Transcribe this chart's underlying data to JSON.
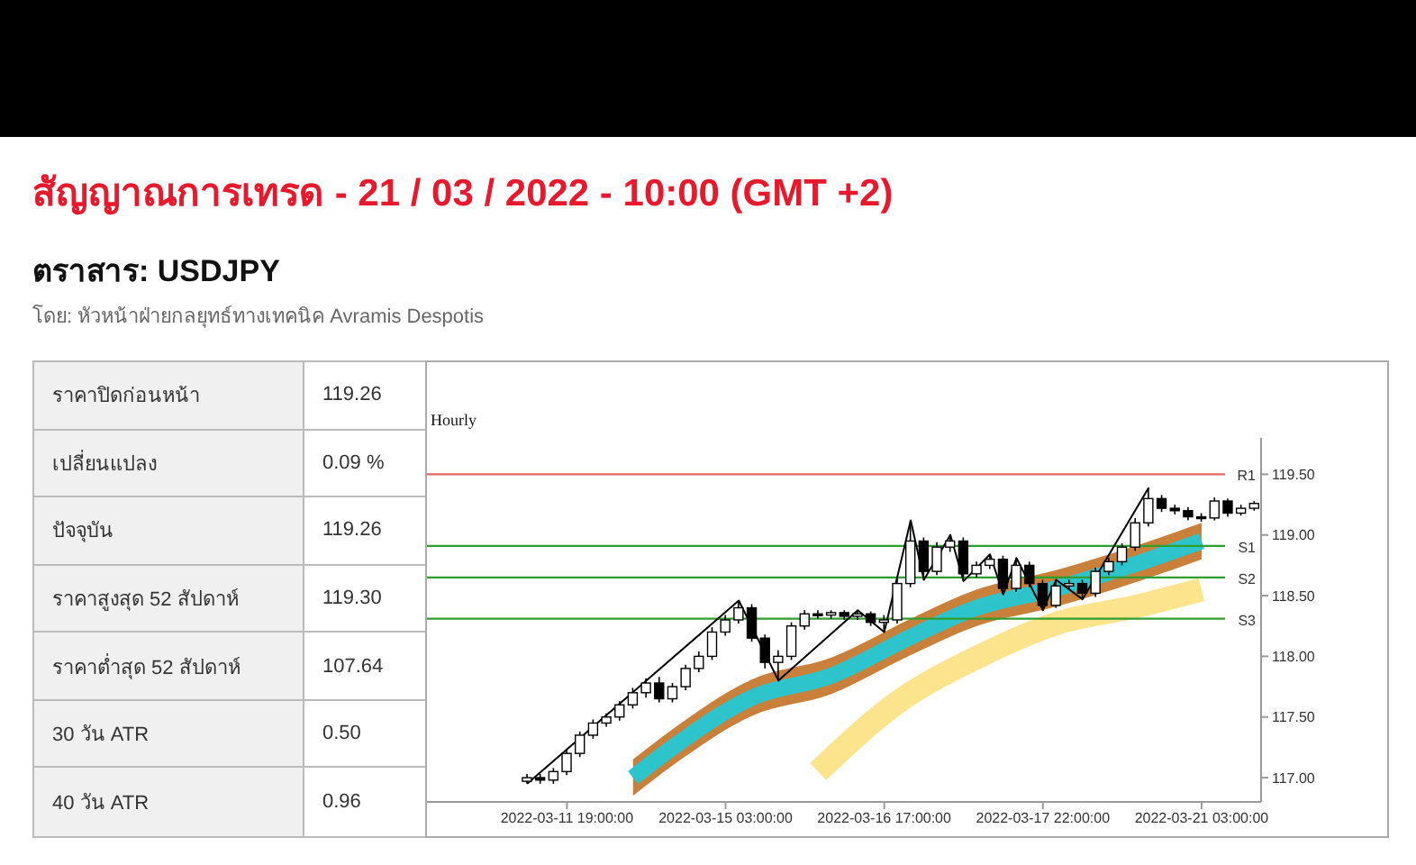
{
  "chart_data": [
    {
      "type": "other",
      "title": "สัญญาณการเทรด - 21 / 03 / 2022 - 10:00 (GMT +2)",
      "subtitle": "ตราสาร: USDJPY",
      "annotations": [
        "โดย: หัวหน้าฝ่ายกลยุทธ์ทางเทคนิค Avramis Despotis"
      ],
      "categories": [
        "ราคาปิดก่อนหน้า",
        "เปลี่ยนแปลง",
        "ปัจจุบัน",
        "ราคาสูงสุด 52 สัปดาห์",
        "ราคาต่ำสุด 52 สัปดาห์",
        "30 วัน ATR",
        "40 วัน ATR"
      ],
      "value_labels": [
        "119.26",
        "0.09 %",
        "119.26",
        "119.30",
        "107.64",
        "0.50",
        "0.96"
      ]
    },
    {
      "type": "candlestick",
      "annotations": [
        "Hourly"
      ],
      "categories": [
        null,
        null,
        null,
        "2022-03-11 19:00:00",
        null,
        null,
        null,
        null,
        null,
        null,
        null,
        null,
        null,
        null,
        null,
        "2022-03-15 03:00:00",
        null,
        null,
        null,
        null,
        null,
        null,
        null,
        null,
        null,
        null,
        null,
        "2022-03-16 17:00:00",
        null,
        null,
        null,
        null,
        null,
        null,
        null,
        null,
        null,
        null,
        null,
        "2022-03-17 22:00:00",
        null,
        null,
        null,
        null,
        null,
        null,
        null,
        null,
        null,
        null,
        null,
        "2022-03-21 03:00:00",
        null,
        null,
        null,
        null
      ],
      "ohlc": [
        [
          116.97,
          117.03,
          116.95,
          117.0
        ],
        [
          117.0,
          117.03,
          116.95,
          116.98
        ],
        [
          116.98,
          117.08,
          116.95,
          117.05
        ],
        [
          117.05,
          117.23,
          117.02,
          117.2
        ],
        [
          117.2,
          117.38,
          117.17,
          117.35
        ],
        [
          117.35,
          117.48,
          117.32,
          117.45
        ],
        [
          117.45,
          117.53,
          117.42,
          117.5
        ],
        [
          117.5,
          117.63,
          117.47,
          117.6
        ],
        [
          117.6,
          117.74,
          117.57,
          117.7
        ],
        [
          117.7,
          117.82,
          117.66,
          117.78
        ],
        [
          117.78,
          117.83,
          117.62,
          117.65
        ],
        [
          117.65,
          117.78,
          117.62,
          117.75
        ],
        [
          117.75,
          117.93,
          117.72,
          117.9
        ],
        [
          117.9,
          118.04,
          117.87,
          118.0
        ],
        [
          118.0,
          118.24,
          117.97,
          118.2
        ],
        [
          118.2,
          118.34,
          118.17,
          118.3
        ],
        [
          118.3,
          118.46,
          118.27,
          118.4
        ],
        [
          118.4,
          118.43,
          118.12,
          118.15
        ],
        [
          118.15,
          118.18,
          117.9,
          117.95
        ],
        [
          117.95,
          118.05,
          117.8,
          118.0
        ],
        [
          118.0,
          118.28,
          117.97,
          118.25
        ],
        [
          118.25,
          118.38,
          118.22,
          118.35
        ],
        [
          118.35,
          118.38,
          118.31,
          118.34
        ],
        [
          118.34,
          118.38,
          118.31,
          118.36
        ],
        [
          118.36,
          118.38,
          118.3,
          118.33
        ],
        [
          118.33,
          118.38,
          118.3,
          118.35
        ],
        [
          118.35,
          118.37,
          118.25,
          118.28
        ],
        [
          118.28,
          118.34,
          118.2,
          118.3
        ],
        [
          118.3,
          118.64,
          118.27,
          118.6
        ],
        [
          118.6,
          119.12,
          118.57,
          118.95
        ],
        [
          118.95,
          118.98,
          118.63,
          118.7
        ],
        [
          118.7,
          118.94,
          118.67,
          118.9
        ],
        [
          118.9,
          119.0,
          118.86,
          118.95
        ],
        [
          118.95,
          118.98,
          118.62,
          118.68
        ],
        [
          118.68,
          118.78,
          118.65,
          118.75
        ],
        [
          118.75,
          118.84,
          118.72,
          118.8
        ],
        [
          118.8,
          118.83,
          118.51,
          118.56
        ],
        [
          118.56,
          118.81,
          118.53,
          118.75
        ],
        [
          118.75,
          118.78,
          118.57,
          118.6
        ],
        [
          118.6,
          118.63,
          118.38,
          118.42
        ],
        [
          118.42,
          118.63,
          118.4,
          118.58
        ],
        [
          118.58,
          118.63,
          118.55,
          118.6
        ],
        [
          118.6,
          118.63,
          118.47,
          118.52
        ],
        [
          118.52,
          118.73,
          118.49,
          118.7
        ],
        [
          118.7,
          118.81,
          118.67,
          118.78
        ],
        [
          118.78,
          118.93,
          118.75,
          118.9
        ],
        [
          118.9,
          119.14,
          118.87,
          119.1
        ],
        [
          119.1,
          119.39,
          119.07,
          119.3
        ],
        [
          119.3,
          119.33,
          119.19,
          119.22
        ],
        [
          119.22,
          119.25,
          119.17,
          119.2
        ],
        [
          119.2,
          119.23,
          119.12,
          119.15
        ],
        [
          119.15,
          119.18,
          119.11,
          119.14
        ],
        [
          119.14,
          119.31,
          119.12,
          119.28
        ],
        [
          119.28,
          119.3,
          119.15,
          119.18
        ],
        [
          119.18,
          119.25,
          119.16,
          119.22
        ],
        [
          119.22,
          119.28,
          119.2,
          119.26
        ]
      ],
      "series": [
        {
          "type": "line",
          "color": "#c8803a",
          "values": [
            null,
            null,
            null,
            null,
            null,
            null,
            null,
            null,
            null,
            null,
            null,
            null,
            null,
            null,
            null,
            null,
            null,
            null,
            null,
            null,
            null,
            null,
            null,
            null,
            null,
            null,
            null,
            null,
            null,
            null,
            null,
            null,
            null,
            null,
            null,
            null,
            null,
            null,
            null,
            null,
            null,
            null,
            null,
            null,
            null,
            null,
            null,
            null,
            null,
            null,
            null,
            null,
            null,
            null,
            null,
            null
          ],
          "lower": [
            null,
            null,
            null,
            null,
            null,
            null,
            null,
            null,
            116.85,
            null,
            null,
            117.1,
            null,
            null,
            null,
            null,
            null,
            117.51,
            null,
            null,
            null,
            null,
            null,
            117.69,
            null,
            null,
            null,
            null,
            null,
            118.01,
            null,
            null,
            null,
            null,
            118.25,
            null,
            null,
            null,
            null,
            null,
            118.41,
            null,
            null,
            null,
            null,
            null,
            118.61,
            null,
            null,
            null,
            null,
            118.8,
            null,
            null,
            null,
            null
          ],
          "upper": [
            null,
            null,
            null,
            null,
            null,
            null,
            null,
            null,
            117.15,
            null,
            null,
            117.4,
            null,
            null,
            null,
            null,
            null,
            117.81,
            null,
            null,
            null,
            null,
            null,
            117.99,
            null,
            null,
            null,
            null,
            null,
            118.31,
            null,
            null,
            null,
            null,
            118.55,
            null,
            null,
            null,
            null,
            null,
            118.71,
            null,
            null,
            null,
            null,
            null,
            118.91,
            null,
            null,
            null,
            null,
            119.1,
            null,
            null,
            null,
            null
          ]
        },
        {
          "type": "line",
          "color": "#2ec4cc",
          "values": [
            null,
            null,
            null,
            null,
            null,
            null,
            null,
            null,
            117.0,
            null,
            null,
            117.25,
            null,
            null,
            null,
            null,
            null,
            117.66,
            null,
            null,
            null,
            null,
            null,
            117.84,
            null,
            null,
            null,
            null,
            null,
            118.16,
            null,
            null,
            null,
            null,
            118.4,
            null,
            null,
            null,
            null,
            null,
            118.56,
            null,
            null,
            null,
            null,
            null,
            118.76,
            null,
            null,
            null,
            null,
            118.95,
            null,
            null,
            null,
            null
          ]
        },
        {
          "type": "line",
          "color": "#fbe48c",
          "values": [
            null,
            null,
            null,
            null,
            null,
            null,
            null,
            null,
            null,
            null,
            null,
            null,
            null,
            null,
            null,
            null,
            null,
            null,
            null,
            null,
            null,
            null,
            117.05,
            null,
            null,
            null,
            null,
            null,
            117.62,
            null,
            null,
            null,
            null,
            null,
            117.99,
            null,
            null,
            null,
            null,
            null,
            118.27,
            null,
            null,
            null,
            null,
            null,
            118.41,
            null,
            null,
            null,
            null,
            118.55,
            null,
            null,
            null,
            null
          ]
        },
        {
          "type": "line",
          "color": "#000000",
          "values": [
            116.95,
            null,
            null,
            null,
            null,
            null,
            null,
            null,
            null,
            null,
            null,
            null,
            null,
            null,
            null,
            null,
            118.46,
            null,
            null,
            117.8,
            null,
            null,
            null,
            null,
            null,
            118.38,
            null,
            118.2,
            null,
            119.12,
            118.63,
            null,
            119.0,
            118.62,
            null,
            118.84,
            118.51,
            118.81,
            null,
            118.38,
            118.63,
            null,
            118.47,
            null,
            null,
            null,
            null,
            119.39,
            null,
            null,
            null,
            null,
            null,
            null,
            null,
            null
          ]
        }
      ],
      "ylim": [
        116.8,
        119.8
      ],
      "yticks": [
        {
          "value": 117,
          "label": "117.00"
        },
        {
          "value": 117.5,
          "label": "117.50"
        },
        {
          "value": 118,
          "label": "118.00"
        },
        {
          "value": 118.5,
          "label": "118.50"
        },
        {
          "value": 119,
          "label": "119.00"
        },
        {
          "value": 119.5,
          "label": "119.50"
        }
      ],
      "ref_lines": [
        {
          "axis": "y",
          "value": 119.5,
          "label": "R1",
          "color": "#e06666"
        },
        {
          "axis": "y",
          "value": 118.91,
          "label": "S1",
          "color": "#2e9e2e"
        },
        {
          "axis": "y",
          "value": 118.65,
          "label": "S2",
          "color": "#2e9e2e"
        },
        {
          "axis": "y",
          "value": 118.31,
          "label": "S3",
          "color": "#2e9e2e"
        }
      ]
    }
  ]
}
